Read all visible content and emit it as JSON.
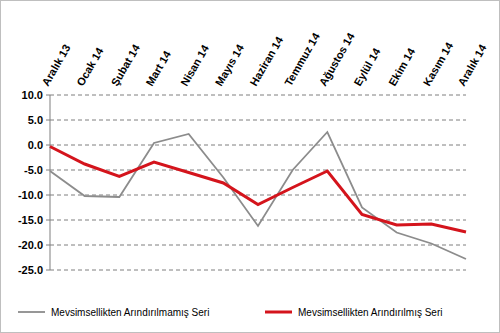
{
  "chart_data": {
    "type": "line",
    "categories": [
      "Aralık 13",
      "Ocak 14",
      "Şubat 14",
      "Mart 14",
      "Nisan 14",
      "Mayıs 14",
      "Haziran 14",
      "Temmuz 14",
      "Ağustos 14",
      "Eylül 14",
      "Ekim 14",
      "Kasım 14",
      "Aralık 14"
    ],
    "series": [
      {
        "name": "Mevsimsellikten Arındırılmamış Seri",
        "color": "#8c8c8c",
        "values": [
          -5.2,
          -10.2,
          -10.4,
          0.4,
          2.2,
          -6.5,
          -16.2,
          -5.0,
          2.6,
          -12.5,
          -17.5,
          -19.7,
          -22.8
        ]
      },
      {
        "name": "Mevsimsellikten Arındırılmış Seri",
        "color": "#d4141c",
        "values": [
          -0.3,
          -3.8,
          -6.3,
          -3.4,
          -5.5,
          -7.6,
          -11.9,
          -8.5,
          -5.2,
          -13.9,
          -16.0,
          -15.8,
          -17.4
        ]
      }
    ],
    "ylim": [
      -25,
      10
    ],
    "yticks": [
      {
        "value": 10,
        "label": "10.0"
      },
      {
        "value": 5,
        "label": "5.0"
      },
      {
        "value": 0,
        "label": "0.0"
      },
      {
        "value": -5,
        "label": "-5.0"
      },
      {
        "value": -10,
        "label": "-10.0"
      },
      {
        "value": -15,
        "label": "-15.0"
      },
      {
        "value": -20,
        "label": "-20.0"
      },
      {
        "value": -25,
        "label": "-25.0"
      }
    ],
    "grid": true,
    "legend": "bottom"
  }
}
